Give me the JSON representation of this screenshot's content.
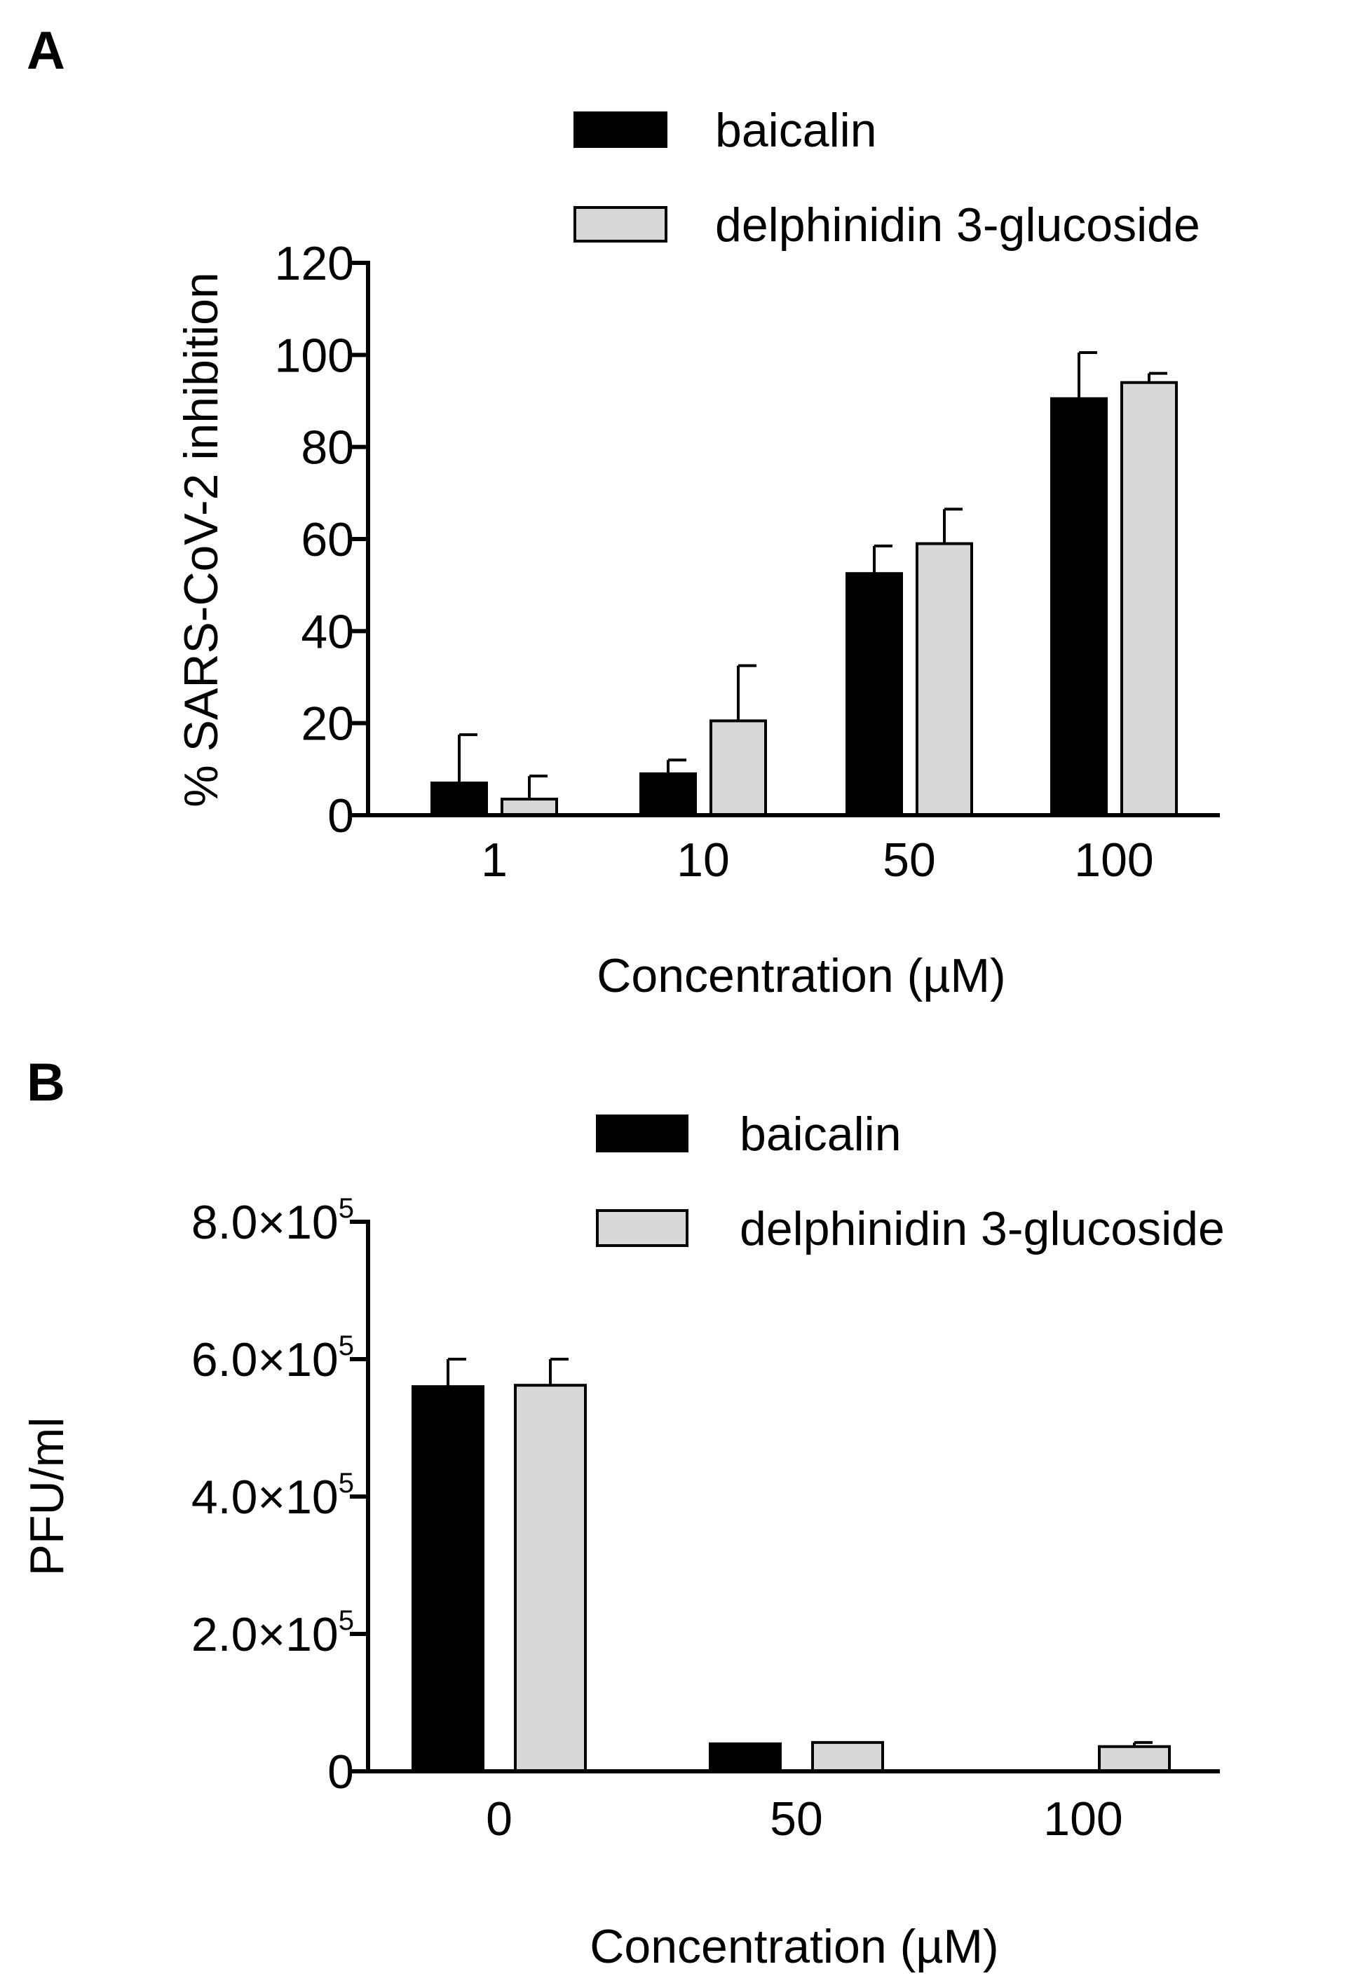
{
  "chart_data": [
    {
      "panel": "A",
      "type": "bar",
      "categories": [
        "1",
        "10",
        "50",
        "100"
      ],
      "series": [
        {
          "name": "baicalin",
          "color": "#000000",
          "values": [
            7,
            9,
            52.5,
            90.5
          ],
          "errors": [
            10.5,
            3,
            6,
            10
          ]
        },
        {
          "name": "delphinidin 3-glucoside",
          "color": "#d8d8d8",
          "values": [
            3.5,
            20.5,
            59,
            94
          ],
          "errors": [
            5,
            12,
            7.5,
            2
          ]
        }
      ],
      "xlabel": "Concentration (µM)",
      "ylabel": "% SARS-CoV-2 inhibition",
      "ylim": [
        0,
        120
      ],
      "yticks": [
        0,
        20,
        40,
        60,
        80,
        100,
        120
      ],
      "ytick_labels": [
        "0",
        "20",
        "40",
        "60",
        "80",
        "100",
        "120"
      ],
      "legend": "top-right"
    },
    {
      "panel": "B",
      "type": "bar",
      "categories": [
        "0",
        "50",
        "100"
      ],
      "series": [
        {
          "name": "baicalin",
          "color": "#000000",
          "values": [
            560000,
            40000,
            0
          ],
          "errors": [
            40000,
            0,
            0
          ]
        },
        {
          "name": "delphinidin 3-glucoside",
          "color": "#d8d8d8",
          "values": [
            562000,
            42000,
            36000
          ],
          "errors": [
            38000,
            0,
            6000
          ]
        }
      ],
      "xlabel": "Concentration (µM)",
      "ylabel": "PFU/ml",
      "ylim": [
        0,
        800000
      ],
      "yticks": [
        0,
        200000,
        400000,
        600000,
        800000
      ],
      "ytick_labels": [
        {
          "mantissa": "0",
          "base": "",
          "exp": ""
        },
        {
          "mantissa": "2.0×",
          "base": "10",
          "exp": "5"
        },
        {
          "mantissa": "4.0×",
          "base": "10",
          "exp": "5"
        },
        {
          "mantissa": "6.0×",
          "base": "10",
          "exp": "5"
        },
        {
          "mantissa": "8.0×",
          "base": "10",
          "exp": "5"
        }
      ],
      "legend": "top-right"
    }
  ]
}
